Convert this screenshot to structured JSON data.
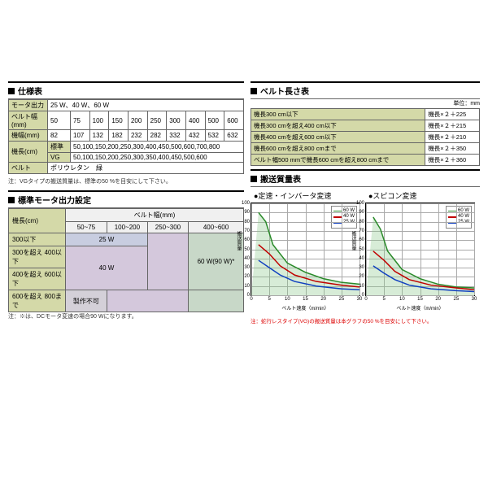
{
  "headers": {
    "spec": "仕様表",
    "motor": "標準モータ出力設定",
    "belt_len": "ベルト長さ表",
    "mass": "搬送質量表",
    "fixed": "●定速・インバータ変速",
    "spicon": "●スピコン変速"
  },
  "spec": {
    "rows": [
      {
        "label": "モータ出力",
        "value": "25 W、40 W、60 W"
      },
      {
        "label": "ベルト幅(mm)",
        "cells": [
          "50",
          "75",
          "100",
          "150",
          "200",
          "250",
          "300",
          "400",
          "500",
          "600"
        ]
      },
      {
        "label": "機幅(mm)",
        "cells": [
          "82",
          "107",
          "132",
          "182",
          "232",
          "282",
          "332",
          "432",
          "532",
          "632"
        ]
      }
    ],
    "length_label": "機長(cm)",
    "std_label": "標準",
    "vg_label": "VG",
    "std_val": "50,100,150,200,250,300,400,450,500,600,700,800",
    "vg_val": "50,100,150,200,250,300,350,400,450,500,600",
    "belt_label": "ベルト",
    "belt_val": "ポリウレタン　緑",
    "note": "注：VGタイプの搬送質量は、標準の50 %を目安にして下さい。"
  },
  "motor": {
    "row_header": "機長(cm)",
    "col_header": "ベルト幅(mm)",
    "cols": [
      "50~75",
      "100~200",
      "250~300",
      "400~600"
    ],
    "rows": [
      "300以下",
      "300を超え 400以下",
      "400を超え 600以下",
      "600を超え 800まで"
    ],
    "cells": {
      "w25": "25 W",
      "w40": "40 W",
      "w60": "60 W(90 W)*",
      "na": "製作不可"
    },
    "note": "注：※は、DCモータ変速の場合90 Wになります。"
  },
  "belt_len": {
    "unit": "単位：mm",
    "rows": [
      [
        "機長300 cm以下",
        "機長×２＋225"
      ],
      [
        "機長300 cmを超え400 cm以下",
        "機長×２＋215"
      ],
      [
        "機長400 cmを超え600 cm以下",
        "機長×２＋210"
      ],
      [
        "機長600 cmを超え800 cmまで",
        "機長×２＋350"
      ],
      [
        "ベルト幅500 mmで機長600 cmを超え800 cmまで",
        "機長×２＋360"
      ]
    ]
  },
  "chart": {
    "legend": [
      "60 W",
      "40 W",
      "25 W"
    ],
    "colors": {
      "60": "#2a8a2a",
      "40": "#c00000",
      "25": "#1040c0"
    },
    "y_label_left": "搬送質量",
    "y_unit": "(kg)",
    "x_label": "ベルト速度（m/min）",
    "y_ticks": [
      "0",
      "10",
      "20",
      "30",
      "40",
      "50",
      "60",
      "70",
      "80",
      "90",
      "100"
    ],
    "x_ticks": [
      "0",
      "5",
      "10",
      "15",
      "20",
      "25",
      "30"
    ],
    "note": "注：蛇行レスタイプ(VG)の搬送質量は本グラフの50 %を目安にして下さい。"
  }
}
